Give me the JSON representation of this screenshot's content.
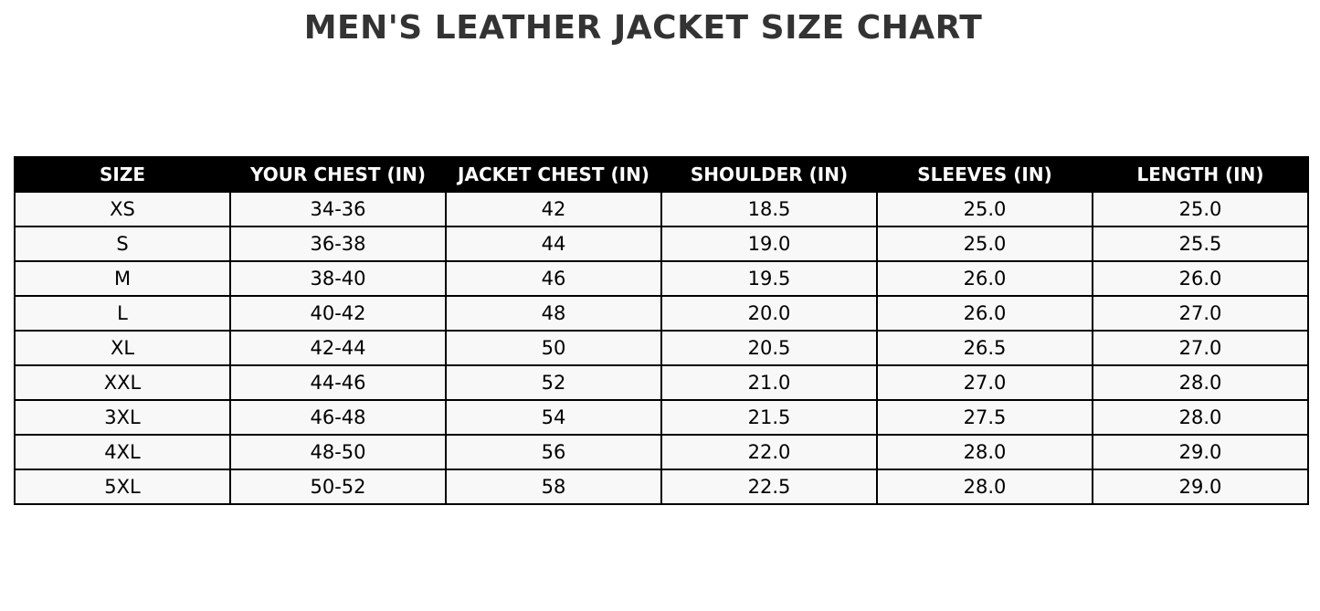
{
  "chart_data": {
    "type": "table",
    "title": "MEN'S LEATHER JACKET SIZE CHART",
    "columns": [
      "SIZE",
      "YOUR CHEST (IN)",
      "JACKET CHEST (IN)",
      "SHOULDER (IN)",
      "SLEEVES (IN)",
      "LENGTH (IN)"
    ],
    "rows": [
      [
        "XS",
        "34-36",
        "42",
        "18.5",
        "25.0",
        "25.0"
      ],
      [
        "S",
        "36-38",
        "44",
        "19.0",
        "25.0",
        "25.5"
      ],
      [
        "M",
        "38-40",
        "46",
        "19.5",
        "26.0",
        "26.0"
      ],
      [
        "L",
        "40-42",
        "48",
        "20.0",
        "26.0",
        "27.0"
      ],
      [
        "XL",
        "42-44",
        "50",
        "20.5",
        "26.5",
        "27.0"
      ],
      [
        "XXL",
        "44-46",
        "52",
        "21.0",
        "27.0",
        "28.0"
      ],
      [
        "3XL",
        "46-48",
        "54",
        "21.5",
        "27.5",
        "28.0"
      ],
      [
        "4XL",
        "48-50",
        "56",
        "22.0",
        "28.0",
        "29.0"
      ],
      [
        "5XL",
        "50-52",
        "58",
        "22.5",
        "28.0",
        "29.0"
      ]
    ],
    "colors": {
      "header_bg": "#000000",
      "header_text": "#ffffff",
      "cell_bg": "#f8f8f8",
      "title": "#333333"
    }
  }
}
